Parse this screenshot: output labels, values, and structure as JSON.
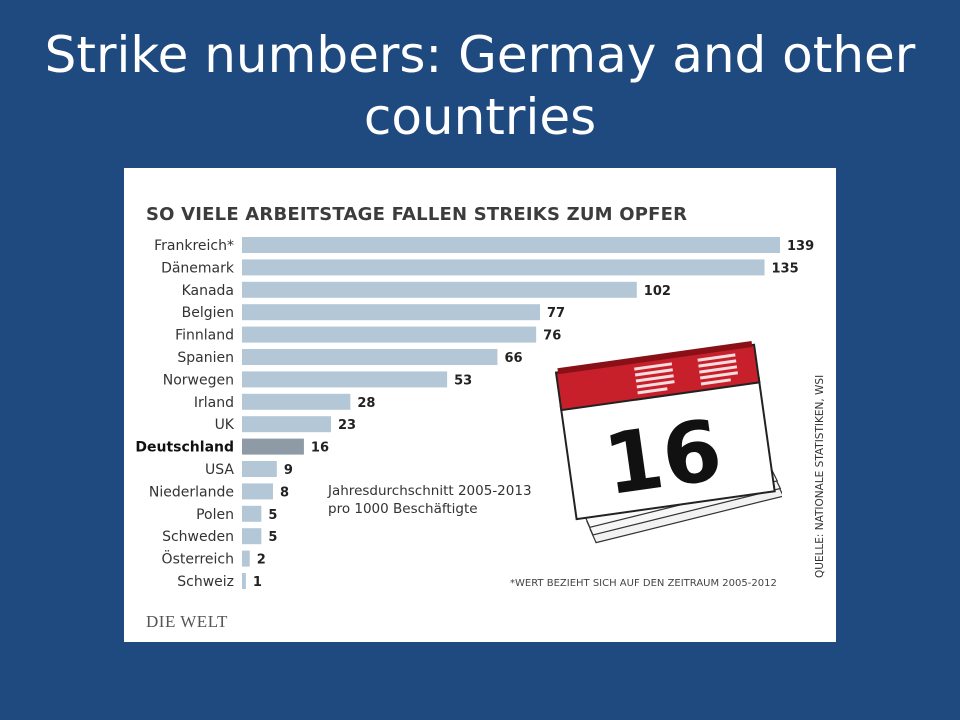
{
  "slide": {
    "title": "Strike numbers: Germay and other countries"
  },
  "chart_data": {
    "type": "bar",
    "orientation": "horizontal",
    "title": "SO VIELE ARBEITSTAGE FALLEN STREIKS ZUM OPFER",
    "categories": [
      "Frankreich*",
      "Dänemark",
      "Kanada",
      "Belgien",
      "Finnland",
      "Spanien",
      "Norwegen",
      "Irland",
      "UK",
      "Deutschland",
      "USA",
      "Niederlande",
      "Polen",
      "Schweden",
      "Österreich",
      "Schweiz"
    ],
    "values": [
      139,
      135,
      102,
      77,
      76,
      66,
      53,
      28,
      23,
      16,
      9,
      8,
      5,
      5,
      2,
      1
    ],
    "highlight": "Deutschland",
    "xlim": [
      0,
      139
    ],
    "grid": false,
    "colors": {
      "bar": "#b3c7d6",
      "highlight_bar": "#8e9ba6"
    }
  },
  "annotations": {
    "note_line1": "Jahresdurchschnitt 2005-2013",
    "note_line2": "pro 1000 Beschäftigte",
    "footnote": "*WERT BEZIEHT SICH AUF DEN ZEITRAUM 2005-2012",
    "source": "QUELLE: NATIONALE STATISTIKEN, WSI"
  },
  "calendar": {
    "number": "16",
    "icon": "tear-off-calendar-icon"
  },
  "logo": {
    "text": "DIE WELT"
  }
}
